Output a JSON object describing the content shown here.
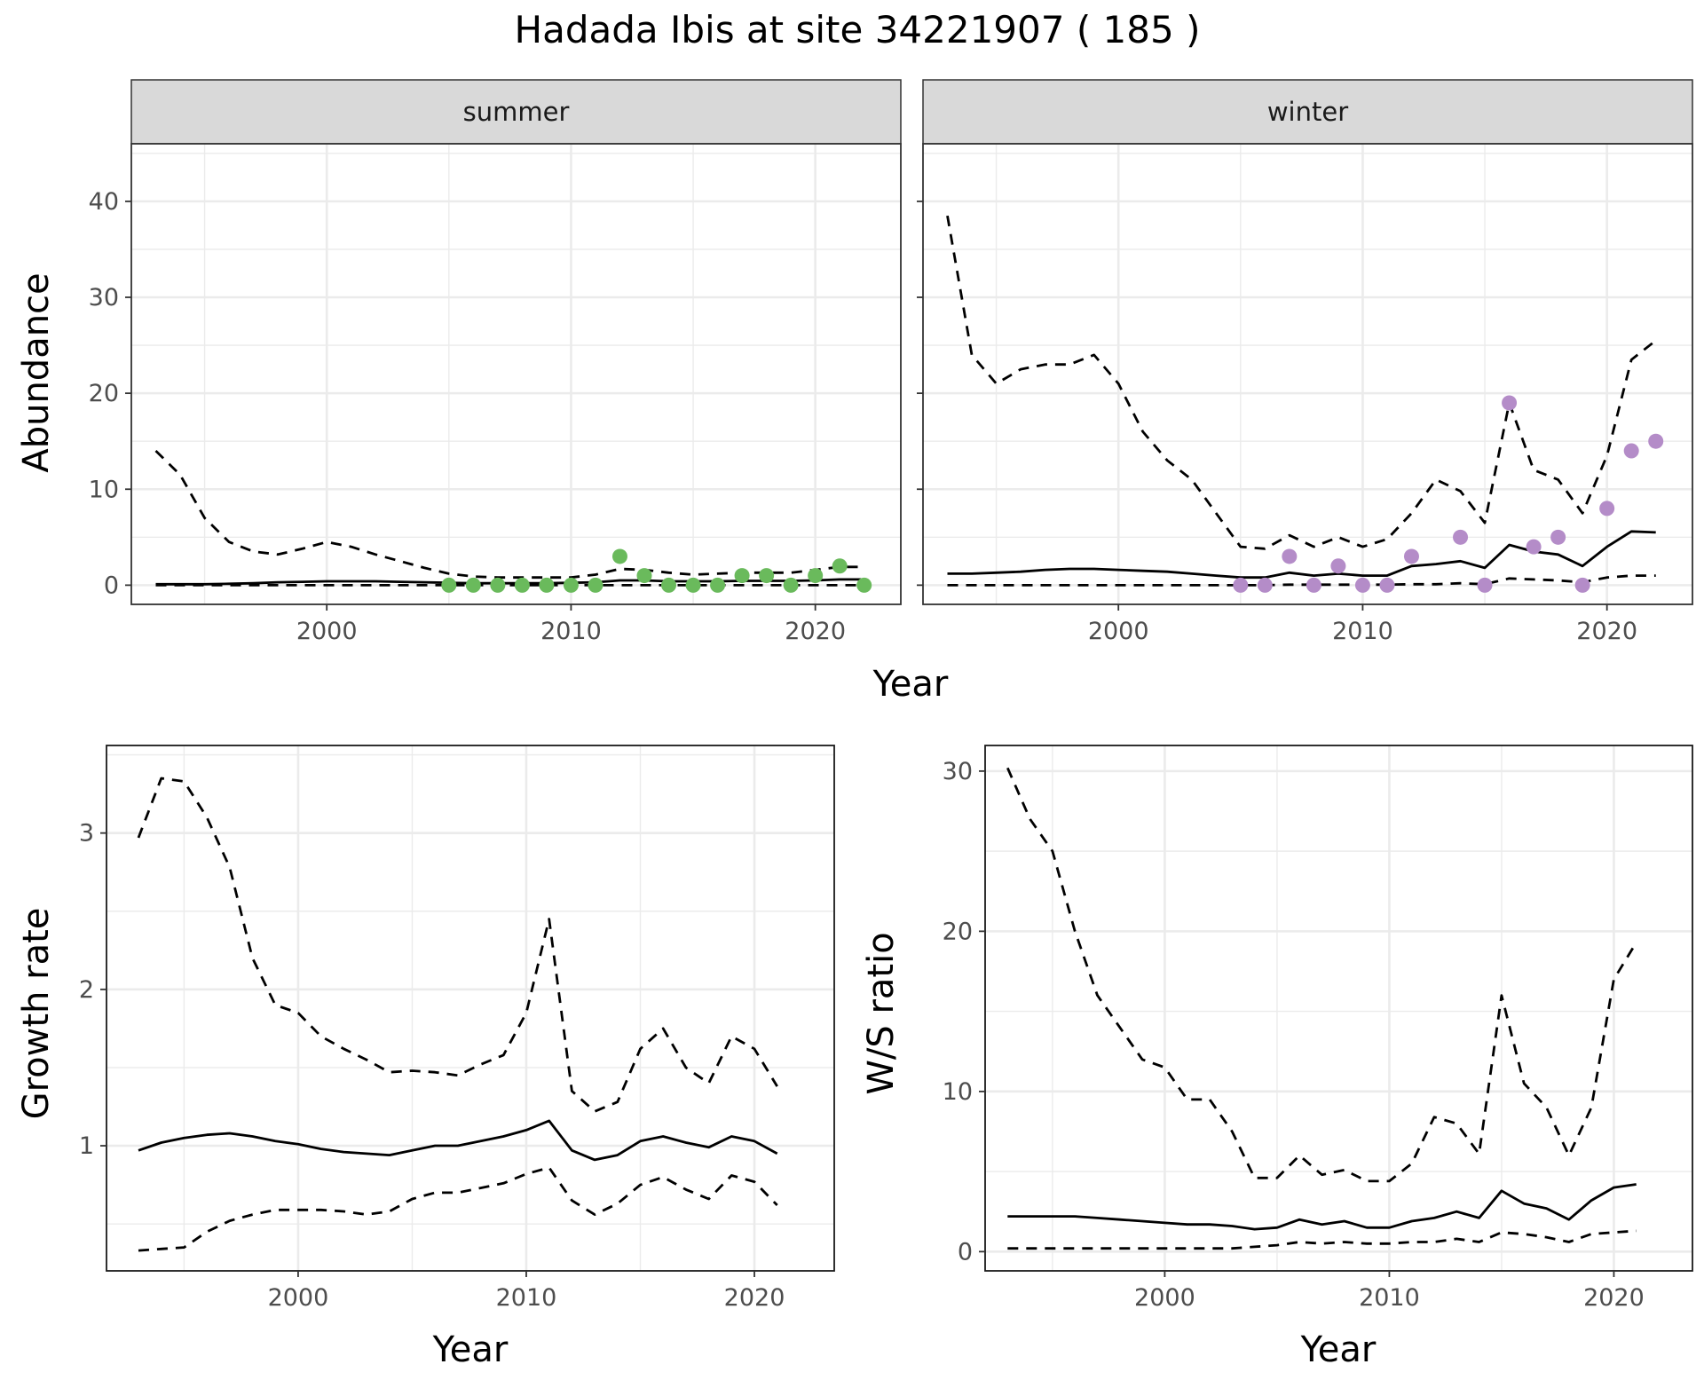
{
  "title": "Hadada Ibis at site 34221907 ( 185 )",
  "colors": {
    "summer_points": "#6aba5c",
    "winter_points": "#b48cc8",
    "lines": "#000000",
    "strip_bg": "#d9d9d9",
    "grid": "#ebebeb"
  },
  "chart_data": [
    {
      "type": "line",
      "facet_label": "summer",
      "xlabel": "Year",
      "ylabel": "Abundance",
      "xlim": [
        1992,
        2023.5
      ],
      "ylim": [
        -2,
        46
      ],
      "x_ticks": [
        2000,
        2010,
        2020
      ],
      "y_ticks": [
        0,
        10,
        20,
        30,
        40
      ],
      "grid": true,
      "x": [
        1993,
        1994,
        1995,
        1996,
        1997,
        1998,
        1999,
        2000,
        2001,
        2002,
        2003,
        2004,
        2005,
        2006,
        2007,
        2008,
        2009,
        2010,
        2011,
        2012,
        2013,
        2014,
        2015,
        2016,
        2017,
        2018,
        2019,
        2020,
        2021,
        2022
      ],
      "series": [
        {
          "role": "mean",
          "style": "solid",
          "values": [
            0.1,
            0.1,
            0.1,
            0.15,
            0.2,
            0.3,
            0.35,
            0.4,
            0.4,
            0.4,
            0.35,
            0.3,
            0.25,
            0.2,
            0.2,
            0.2,
            0.2,
            0.25,
            0.3,
            0.5,
            0.5,
            0.4,
            0.4,
            0.4,
            0.45,
            0.45,
            0.45,
            0.5,
            0.6,
            0.6
          ]
        },
        {
          "role": "upper",
          "style": "dashed",
          "values": [
            14,
            11.5,
            7,
            4.5,
            3.5,
            3.2,
            3.8,
            4.5,
            4.0,
            3.2,
            2.5,
            1.8,
            1.2,
            0.9,
            0.8,
            0.8,
            0.8,
            0.8,
            1.1,
            1.7,
            1.6,
            1.3,
            1.1,
            1.2,
            1.3,
            1.3,
            1.3,
            1.6,
            1.9,
            1.9
          ]
        },
        {
          "role": "lower",
          "style": "dashed",
          "values": [
            0,
            0,
            0,
            0,
            0,
            0,
            0,
            0,
            0,
            0,
            0,
            0,
            0,
            0,
            0,
            0,
            0,
            0,
            0,
            0,
            0,
            0,
            0,
            0,
            0,
            0,
            0,
            0,
            0,
            0
          ]
        }
      ],
      "points": {
        "x": [
          2005,
          2006,
          2007,
          2008,
          2009,
          2010,
          2011,
          2012,
          2013,
          2014,
          2015,
          2016,
          2017,
          2018,
          2019,
          2020,
          2021,
          2022
        ],
        "y": [
          0,
          0,
          0,
          0,
          0,
          0,
          0,
          3,
          1,
          0,
          0,
          0,
          1,
          1,
          0,
          1,
          2,
          0
        ]
      }
    },
    {
      "type": "line",
      "facet_label": "winter",
      "xlabel": "Year",
      "ylabel": "Abundance",
      "xlim": [
        1992,
        2023.5
      ],
      "ylim": [
        -2,
        46
      ],
      "x_ticks": [
        2000,
        2010,
        2020
      ],
      "y_ticks": [
        0,
        10,
        20,
        30,
        40
      ],
      "grid": true,
      "x": [
        1993,
        1994,
        1995,
        1996,
        1997,
        1998,
        1999,
        2000,
        2001,
        2002,
        2003,
        2004,
        2005,
        2006,
        2007,
        2008,
        2009,
        2010,
        2011,
        2012,
        2013,
        2014,
        2015,
        2016,
        2017,
        2018,
        2019,
        2020,
        2021,
        2022
      ],
      "series": [
        {
          "role": "mean",
          "style": "solid",
          "values": [
            1.2,
            1.2,
            1.3,
            1.4,
            1.6,
            1.7,
            1.7,
            1.6,
            1.5,
            1.4,
            1.2,
            1.0,
            0.8,
            0.8,
            1.3,
            1.0,
            1.2,
            1.0,
            1.0,
            2.0,
            2.2,
            2.5,
            1.8,
            4.2,
            3.5,
            3.2,
            2.0,
            4.0,
            5.6,
            5.5
          ]
        },
        {
          "role": "upper",
          "style": "dashed",
          "values": [
            38.5,
            24,
            21,
            22.5,
            23,
            23,
            24,
            21,
            16,
            13,
            11,
            7.5,
            4,
            3.8,
            5.2,
            4,
            5,
            4,
            4.8,
            7.5,
            11,
            9.8,
            6.5,
            19,
            12,
            11,
            7.5,
            13.5,
            23.5,
            25.5
          ]
        },
        {
          "role": "lower",
          "style": "dashed",
          "values": [
            0,
            0,
            0,
            0,
            0,
            0,
            0,
            0,
            0,
            0,
            0,
            0,
            0,
            0,
            0.05,
            0.05,
            0.05,
            0.05,
            0.05,
            0.1,
            0.1,
            0.2,
            0.1,
            0.7,
            0.6,
            0.5,
            0.3,
            0.8,
            1.0,
            1.0
          ]
        }
      ],
      "points": {
        "x": [
          2005,
          2006,
          2007,
          2008,
          2009,
          2010,
          2011,
          2012,
          2014,
          2015,
          2016,
          2017,
          2018,
          2019,
          2020,
          2021,
          2022
        ],
        "y": [
          0,
          0,
          3,
          0,
          2,
          0,
          0,
          3,
          5,
          0,
          19,
          4,
          5,
          0,
          8,
          14,
          15
        ]
      }
    },
    {
      "type": "line",
      "xlabel": "Year",
      "ylabel": "Growth rate",
      "xlim": [
        1991.6,
        2023.5
      ],
      "ylim": [
        0.2,
        3.56
      ],
      "x_ticks": [
        2000,
        2010,
        2020
      ],
      "y_ticks": [
        1,
        2,
        3
      ],
      "grid": true,
      "x": [
        1993,
        1994,
        1995,
        1996,
        1997,
        1998,
        1999,
        2000,
        2001,
        2002,
        2003,
        2004,
        2005,
        2006,
        2007,
        2008,
        2009,
        2010,
        2011,
        2012,
        2013,
        2014,
        2015,
        2016,
        2017,
        2018,
        2019,
        2020,
        2021
      ],
      "series": [
        {
          "role": "mean",
          "style": "solid",
          "values": [
            0.97,
            1.02,
            1.05,
            1.07,
            1.08,
            1.06,
            1.03,
            1.01,
            0.98,
            0.96,
            0.95,
            0.94,
            0.97,
            1.0,
            1.0,
            1.03,
            1.06,
            1.1,
            1.16,
            0.97,
            0.91,
            0.94,
            1.03,
            1.06,
            1.02,
            0.99,
            1.06,
            1.03,
            0.95
          ]
        },
        {
          "role": "upper",
          "style": "dashed",
          "values": [
            2.97,
            3.35,
            3.33,
            3.1,
            2.78,
            2.2,
            1.9,
            1.85,
            1.7,
            1.62,
            1.55,
            1.47,
            1.48,
            1.47,
            1.45,
            1.52,
            1.58,
            1.85,
            2.45,
            1.35,
            1.22,
            1.28,
            1.62,
            1.75,
            1.5,
            1.4,
            1.7,
            1.62,
            1.38
          ]
        },
        {
          "role": "lower",
          "style": "dashed",
          "values": [
            0.33,
            0.34,
            0.35,
            0.45,
            0.52,
            0.56,
            0.59,
            0.59,
            0.59,
            0.58,
            0.56,
            0.58,
            0.66,
            0.7,
            0.7,
            0.73,
            0.76,
            0.82,
            0.86,
            0.65,
            0.56,
            0.63,
            0.75,
            0.8,
            0.72,
            0.66,
            0.81,
            0.77,
            0.62
          ]
        }
      ]
    },
    {
      "type": "line",
      "xlabel": "Year",
      "ylabel": "W/S ratio",
      "xlim": [
        1992,
        2023.5
      ],
      "ylim": [
        -1.2,
        31.6
      ],
      "x_ticks": [
        2000,
        2010,
        2020
      ],
      "y_ticks": [
        0,
        10,
        20,
        30
      ],
      "grid": true,
      "x": [
        1993,
        1994,
        1995,
        1996,
        1997,
        1998,
        1999,
        2000,
        2001,
        2002,
        2003,
        2004,
        2005,
        2006,
        2007,
        2008,
        2009,
        2010,
        2011,
        2012,
        2013,
        2014,
        2015,
        2016,
        2017,
        2018,
        2019,
        2020,
        2021
      ],
      "series": [
        {
          "role": "mean",
          "style": "solid",
          "values": [
            2.2,
            2.2,
            2.2,
            2.2,
            2.1,
            2.0,
            1.9,
            1.8,
            1.7,
            1.7,
            1.6,
            1.4,
            1.5,
            2.0,
            1.7,
            1.9,
            1.5,
            1.5,
            1.9,
            2.1,
            2.5,
            2.1,
            3.8,
            3.0,
            2.7,
            2.0,
            3.2,
            4.0,
            4.2
          ]
        },
        {
          "role": "upper",
          "style": "dashed",
          "values": [
            30.2,
            27,
            25,
            20,
            16,
            14,
            12,
            11.5,
            9.5,
            9.5,
            7.5,
            4.6,
            4.6,
            6,
            4.8,
            5.1,
            4.4,
            4.4,
            5.5,
            8.4,
            8,
            6.1,
            16,
            10.5,
            9,
            6,
            9,
            17,
            19.3
          ]
        },
        {
          "role": "lower",
          "style": "dashed",
          "values": [
            0.2,
            0.2,
            0.2,
            0.2,
            0.2,
            0.2,
            0.2,
            0.2,
            0.2,
            0.2,
            0.2,
            0.3,
            0.4,
            0.6,
            0.5,
            0.6,
            0.5,
            0.5,
            0.6,
            0.6,
            0.8,
            0.6,
            1.2,
            1.1,
            0.9,
            0.6,
            1.1,
            1.2,
            1.3
          ]
        }
      ]
    }
  ]
}
